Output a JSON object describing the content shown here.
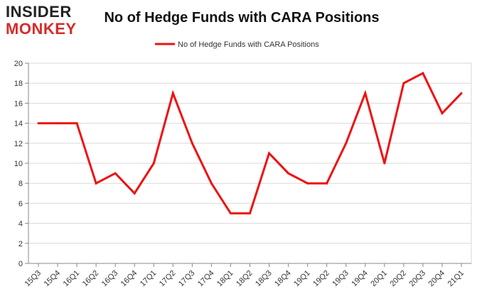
{
  "logo": {
    "line1": "INSIDER",
    "line2": "MONKEY"
  },
  "colors": {
    "line": "#ee1111",
    "grid": "#d9d9d9",
    "axis": "#888888",
    "logo_red": "#d62b2b"
  },
  "chart_data": {
    "type": "line",
    "title": "No of Hedge Funds with CARA Positions",
    "xlabel": "",
    "ylabel": "",
    "categories": [
      "15Q3",
      "15Q4",
      "16Q1",
      "16Q2",
      "16Q3",
      "16Q4",
      "17Q1",
      "17Q2",
      "17Q3",
      "17Q4",
      "18Q1",
      "18Q2",
      "18Q3",
      "18Q4",
      "19Q1",
      "19Q2",
      "19Q3",
      "19Q4",
      "20Q1",
      "20Q2",
      "20Q3",
      "20Q4",
      "21Q1"
    ],
    "series": [
      {
        "name": "No of Hedge Funds with CARA Positions",
        "values": [
          14,
          14,
          14,
          8,
          9,
          7,
          10,
          17,
          12,
          8,
          5,
          5,
          11,
          9,
          8,
          8,
          12,
          17,
          10,
          18,
          19,
          15,
          17
        ]
      }
    ],
    "ylim": [
      0,
      20
    ],
    "yticks": [
      0,
      2,
      4,
      6,
      8,
      10,
      12,
      14,
      16,
      18,
      20
    ],
    "grid": true,
    "legend": "top-center"
  }
}
